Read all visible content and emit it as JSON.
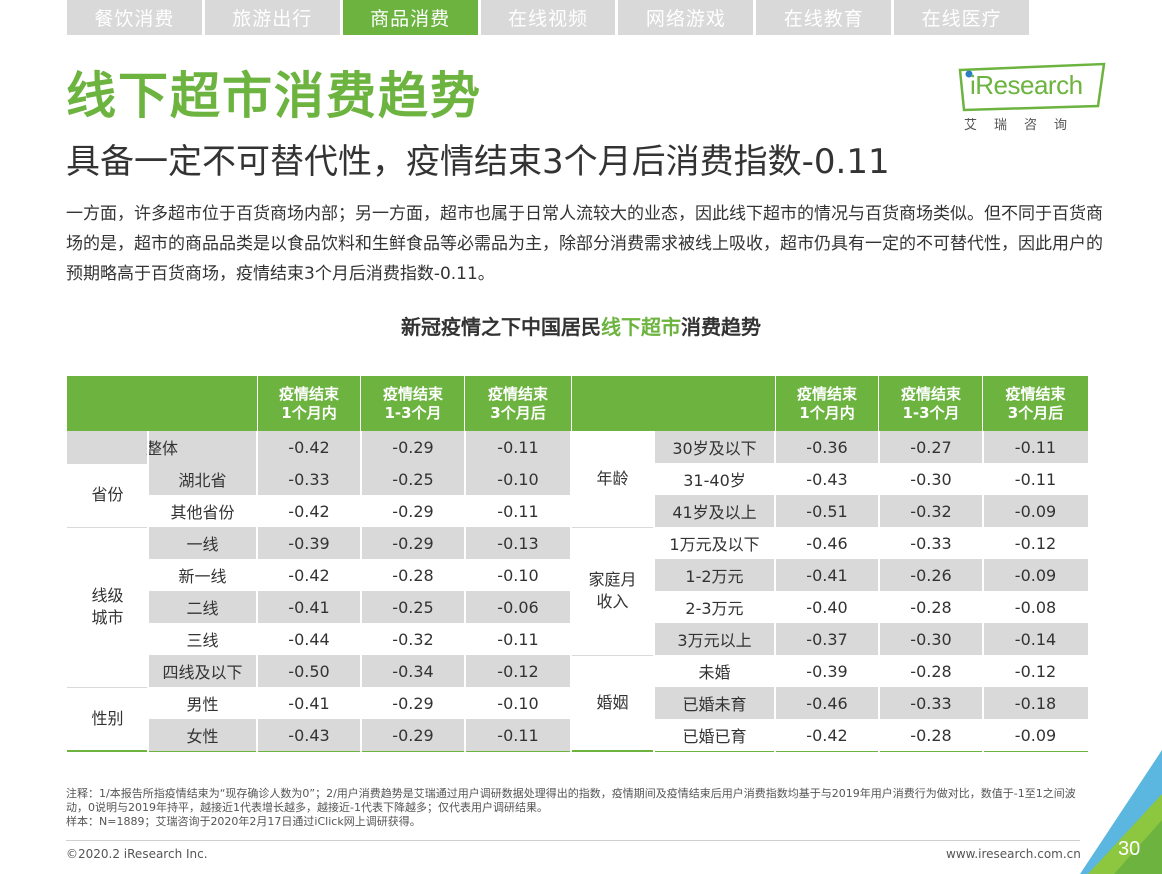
{
  "tabs": [
    "餐饮消费",
    "旅游出行",
    "商品消费",
    "在线视频",
    "网络游戏",
    "在线教育",
    "在线医疗"
  ],
  "active_tab": 2,
  "title": "线下超市消费趋势",
  "subtitle": "具备一定不可替代性，疫情结束3个月后消费指数-0.11",
  "body": "一方面，许多超市位于百货商场内部；另一方面，超市也属于日常人流较大的业态，因此线下超市的情况与百货商场类似。但不同于百货商场的是，超市的商品品类是以食品饮料和生鲜食品等必需品为主，除部分消费需求被线上吸收，超市仍具有一定的不可替代性，因此用户的预期略高于百货商场，疫情结束3个月后消费指数-0.11。",
  "logo": {
    "text": "iResearch",
    "sub": "艾瑞咨询"
  },
  "chart_title": {
    "prefix": "新冠疫情之下中国居民",
    "highlight": "线下超市",
    "suffix": "消费趋势"
  },
  "table": {
    "headers": [
      [
        "疫情结束",
        "1个月内"
      ],
      [
        "疫情结束",
        "1-3个月"
      ],
      [
        "疫情结束",
        "3个月后"
      ]
    ],
    "left": {
      "overall": {
        "label": "整体",
        "values": [
          "-0.42",
          "-0.29",
          "-0.11"
        ]
      },
      "groups": [
        {
          "name": "省份",
          "rows": [
            {
              "label": "湖北省",
              "values": [
                "-0.33",
                "-0.25",
                "-0.10"
              ]
            },
            {
              "label": "其他省份",
              "values": [
                "-0.42",
                "-0.29",
                "-0.11"
              ]
            }
          ]
        },
        {
          "name": "线级城市",
          "rows": [
            {
              "label": "一线",
              "values": [
                "-0.39",
                "-0.29",
                "-0.13"
              ]
            },
            {
              "label": "新一线",
              "values": [
                "-0.42",
                "-0.28",
                "-0.10"
              ]
            },
            {
              "label": "二线",
              "values": [
                "-0.41",
                "-0.25",
                "-0.06"
              ]
            },
            {
              "label": "三线",
              "values": [
                "-0.44",
                "-0.32",
                "-0.11"
              ]
            },
            {
              "label": "四线及以下",
              "values": [
                "-0.50",
                "-0.34",
                "-0.12"
              ]
            }
          ]
        },
        {
          "name": "性别",
          "rows": [
            {
              "label": "男性",
              "values": [
                "-0.41",
                "-0.29",
                "-0.10"
              ]
            },
            {
              "label": "女性",
              "values": [
                "-0.43",
                "-0.29",
                "-0.11"
              ]
            }
          ]
        }
      ]
    },
    "right": {
      "groups": [
        {
          "name": "年龄",
          "rows": [
            {
              "label": "30岁及以下",
              "values": [
                "-0.36",
                "-0.27",
                "-0.11"
              ]
            },
            {
              "label": "31-40岁",
              "values": [
                "-0.43",
                "-0.30",
                "-0.11"
              ]
            },
            {
              "label": "41岁及以上",
              "values": [
                "-0.51",
                "-0.32",
                "-0.09"
              ]
            }
          ]
        },
        {
          "name": "家庭月收入",
          "rows": [
            {
              "label": "1万元及以下",
              "values": [
                "-0.46",
                "-0.33",
                "-0.12"
              ]
            },
            {
              "label": "1-2万元",
              "values": [
                "-0.41",
                "-0.26",
                "-0.09"
              ]
            },
            {
              "label": "2-3万元",
              "values": [
                "-0.40",
                "-0.28",
                "-0.08"
              ]
            },
            {
              "label": "3万元以上",
              "values": [
                "-0.37",
                "-0.30",
                "-0.14"
              ]
            }
          ]
        },
        {
          "name": "婚姻",
          "rows": [
            {
              "label": "未婚",
              "values": [
                "-0.39",
                "-0.28",
                "-0.12"
              ]
            },
            {
              "label": "已婚未育",
              "values": [
                "-0.46",
                "-0.33",
                "-0.18"
              ]
            },
            {
              "label": "已婚已育",
              "values": [
                "-0.42",
                "-0.28",
                "-0.09"
              ]
            }
          ]
        }
      ]
    }
  },
  "notes": [
    "注释：1/本报告所指疫情结束为“现存确诊人数为0”；2/用户消费趋势是艾瑞通过用户调研数据处理得出的指数，疫情期间及疫情结束后用户消费指数均基于与2019年用户消费行为做对比，数值于-1至1之间波动，0说明与2019年持平，越接近1代表增长越多，越接近-1代表下降越多；仅代表用户调研结果。",
    "样本：N=1889；艾瑞咨询于2020年2月17日通过iClick网上调研获得。"
  ],
  "footer": {
    "copyright": "©2020.2 iResearch Inc.",
    "website": "www.iresearch.com.cn",
    "page": "30"
  },
  "colors": {
    "accent": "#6cb33f",
    "grey": "#d9d9d9",
    "text": "#333333"
  }
}
